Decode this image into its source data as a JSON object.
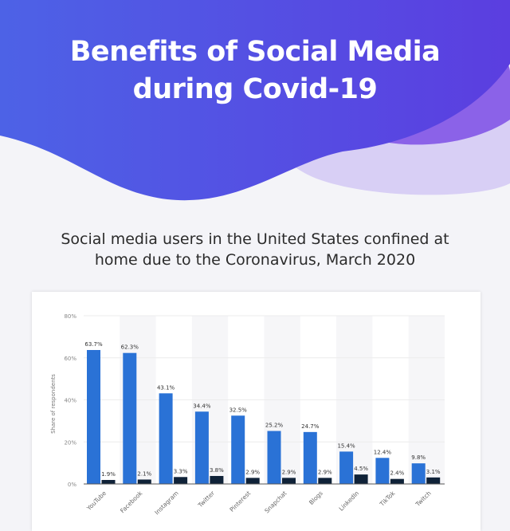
{
  "header": {
    "title_line1": "Benefits of Social Media",
    "title_line2": "during Covid-19",
    "colors": {
      "primary": "#4a3fe0",
      "secondary": "#7b5ce8",
      "light": "#cbbdf3"
    }
  },
  "subtitle_line1": "Social media users in the United States confined at",
  "subtitle_line2": "home due to the Coronavirus, March 2020",
  "chart_data": {
    "type": "bar",
    "ylabel": "Share of respondents",
    "ylim": [
      0,
      80
    ],
    "yticks": [
      "0%",
      "20%",
      "40%",
      "60%",
      "80%"
    ],
    "grid": true,
    "categories": [
      "YouTube",
      "Facebook",
      "Instagram",
      "Twitter",
      "Pinterest",
      "Snapchat",
      "Blogs",
      "LinkedIn",
      "TikTok",
      "Twitch"
    ],
    "series": [
      {
        "values": [
          63.7,
          62.3,
          43.1,
          34.4,
          32.5,
          25.2,
          24.7,
          15.4,
          12.4,
          9.8
        ],
        "labels": [
          "63.7%",
          "62.3%",
          "43.1%",
          "34.4%",
          "32.5%",
          "25.2%",
          "24.7%",
          "15.4%",
          "12.4%",
          "9.8%"
        ],
        "color": "#2a72d6"
      },
      {
        "values": [
          1.9,
          2.1,
          3.3,
          3.8,
          2.9,
          2.9,
          2.9,
          4.5,
          2.4,
          3.1
        ],
        "labels": [
          "1.9%",
          "2.1%",
          "3.3%",
          "3.8%",
          "2.9%",
          "2.9%",
          "2.9%",
          "4.5%",
          "2.4%",
          "3.1%"
        ],
        "color": "#0f2238"
      }
    ]
  }
}
